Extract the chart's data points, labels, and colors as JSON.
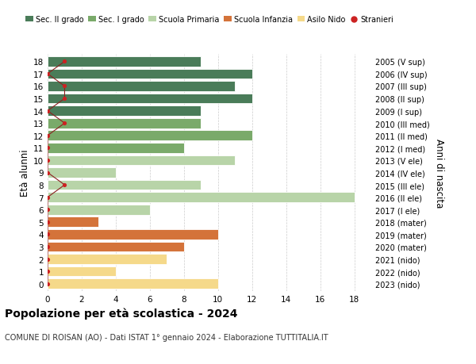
{
  "ages": [
    18,
    17,
    16,
    15,
    14,
    13,
    12,
    11,
    10,
    9,
    8,
    7,
    6,
    5,
    4,
    3,
    2,
    1,
    0
  ],
  "years": [
    "2005 (V sup)",
    "2006 (IV sup)",
    "2007 (III sup)",
    "2008 (II sup)",
    "2009 (I sup)",
    "2010 (III med)",
    "2011 (II med)",
    "2012 (I med)",
    "2013 (V ele)",
    "2014 (IV ele)",
    "2015 (III ele)",
    "2016 (II ele)",
    "2017 (I ele)",
    "2018 (mater)",
    "2019 (mater)",
    "2020 (mater)",
    "2021 (nido)",
    "2022 (nido)",
    "2023 (nido)"
  ],
  "bar_values": [
    9,
    12,
    11,
    12,
    9,
    9,
    12,
    8,
    11,
    4,
    9,
    18,
    6,
    3,
    10,
    8,
    7,
    4,
    10
  ],
  "bar_colors": [
    "#4a7c59",
    "#4a7c59",
    "#4a7c59",
    "#4a7c59",
    "#4a7c59",
    "#7aaa6a",
    "#7aaa6a",
    "#7aaa6a",
    "#b8d4a8",
    "#b8d4a8",
    "#b8d4a8",
    "#b8d4a8",
    "#b8d4a8",
    "#d4733a",
    "#d4733a",
    "#d4733a",
    "#f5d98a",
    "#f5d98a",
    "#f5d98a"
  ],
  "stranieri_x": [
    1,
    0,
    1,
    1,
    0,
    1,
    0,
    0,
    0,
    0,
    1,
    0,
    0,
    0,
    0,
    0,
    0,
    0,
    0
  ],
  "legend_labels": [
    "Sec. II grado",
    "Sec. I grado",
    "Scuola Primaria",
    "Scuola Infanzia",
    "Asilo Nido",
    "Stranieri"
  ],
  "legend_colors": [
    "#4a7c59",
    "#7aaa6a",
    "#b8d4a8",
    "#d4733a",
    "#f5d98a",
    "#cc2222"
  ],
  "title": "Popolazione per età scolastica - 2024",
  "subtitle": "COMUNE DI ROISAN (AO) - Dati ISTAT 1° gennaio 2024 - Elaborazione TUTTITALIA.IT",
  "ylabel_left": "Età alunni",
  "ylabel_right": "Anni di nascita",
  "xlim": [
    0,
    19
  ],
  "xticks": [
    0,
    2,
    4,
    6,
    8,
    10,
    12,
    14,
    16,
    18
  ],
  "background_color": "#ffffff",
  "grid_color": "#cccccc"
}
